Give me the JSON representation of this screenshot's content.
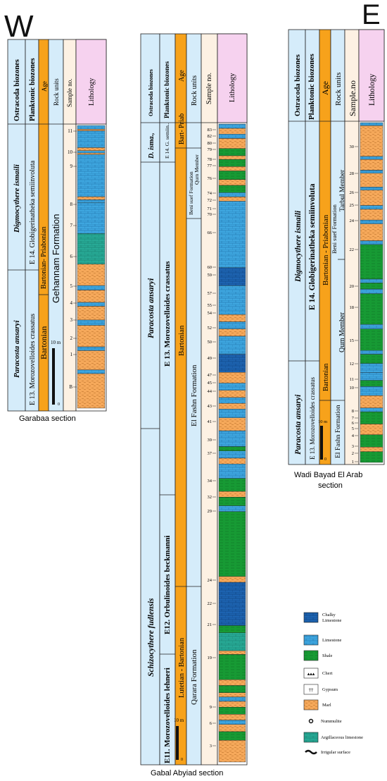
{
  "compass": {
    "west": "W",
    "east": "E"
  },
  "colors": {
    "limestone": "#3ea6df",
    "chalky": "#1d63b0",
    "shale": "#179a34",
    "marl": "#f5a85a",
    "argillaceous": "#27a995",
    "ostracoda_col": "#d5ecfa",
    "planktonic_col": "#d5ecfa",
    "age_col": "#f7a21b",
    "rock_col": "#d5ecfa",
    "sample_col": "#fdf1e3",
    "litho_col": "#f6d2ef"
  },
  "headers": {
    "ostracoda": "Ostracoda biozones",
    "planktonic": "Planktonic biozones",
    "age": "Age",
    "rock_units": "Rock units",
    "sample_no": "Sample no.",
    "sample_no_alt": "Sample.no",
    "lithology": "Lithology"
  },
  "sections": {
    "garabaa": {
      "caption": "Garabaa section",
      "ostracoda": [
        "Digmocythere ismaili",
        "Paracosta ansaryi"
      ],
      "planktonic": [
        "E 14. Globigerinatheka semiinvoluta",
        "E 13. Morozovelloides crassatus"
      ],
      "age": [
        "Bartonian- Priabonian",
        "Bartonian"
      ],
      "rock": "Gehannam Formation",
      "samples": [
        "11",
        "10",
        "9",
        "8",
        "7",
        "6",
        "5",
        "4",
        "3",
        "2",
        "1",
        "B"
      ],
      "scale": {
        "label": "10 m",
        "zero": "0"
      }
    },
    "abyiad": {
      "caption": "Gabal Abyiad section",
      "ostracoda": [
        "D. isma.,",
        "Paracosta ansaryi",
        "Schizocythere fudlensis"
      ],
      "planktonic": [
        "E 14. G. semiin..",
        "E 13. Morozovelloides crassatus",
        "E12. Orbulinoides beckmanni",
        "E11. Morozovelloides lehneri"
      ],
      "age": [
        "Bart- Priab",
        "Bartonian",
        "Lutetian - Bartonian"
      ],
      "rock": [
        "Beni suef Formation",
        "Qurn Member",
        "El Fashn Formation",
        "Qarara Formation"
      ],
      "samples": [
        "83",
        "82",
        "80",
        "79",
        "78",
        "77",
        "76",
        "74",
        "72",
        "71",
        "70",
        "66",
        "60",
        "59",
        "57",
        "55",
        "54",
        "52",
        "50",
        "49",
        "47",
        "45",
        "44",
        "43",
        "41",
        "39",
        "37",
        "34",
        "32",
        "29",
        "24",
        "22",
        "21",
        "19",
        "9",
        "6",
        "3"
      ],
      "scale": {
        "label": "10 m",
        "zero": "0"
      }
    },
    "bayad": {
      "caption_lines": [
        "Wadi Bayad El Arab",
        "section"
      ],
      "ostracoda": [
        "Digmocythere ismaili",
        "Paracosta ansaryi"
      ],
      "planktonic": [
        "E 14. Globigerinatheka semiinvoluta",
        "E 13. Morozovelloides crassatus"
      ],
      "age": [
        "Bartonian - Priabonian",
        "Bartonian"
      ],
      "rock": [
        "Beni suef Formation",
        "Tarbul Member",
        "Qurn Member",
        "El Fashn Formation"
      ],
      "samples": [
        "30",
        "28",
        "26",
        "25",
        "24",
        "22",
        "20",
        "18",
        "15",
        "12",
        "11",
        "10",
        "8",
        "7",
        "6",
        "5",
        "4",
        "3",
        "2",
        "1"
      ],
      "scale": {
        "label": "10 m",
        "zero": "0"
      }
    }
  },
  "legend": [
    {
      "label": "Chalky Limestone",
      "type": "chalky"
    },
    {
      "label": "Limestone",
      "type": "limestone"
    },
    {
      "label": "Shale",
      "type": "shale"
    },
    {
      "label": "Chert",
      "type": "chert"
    },
    {
      "label": "Gypsum",
      "type": "gypsum"
    },
    {
      "label": "Marl",
      "type": "marl"
    },
    {
      "label": "Nummulite",
      "type": "nummulite"
    },
    {
      "label": "Argillaceous limestone",
      "type": "argillaceous"
    },
    {
      "label": "Irrigular surface",
      "type": "irregular"
    }
  ]
}
